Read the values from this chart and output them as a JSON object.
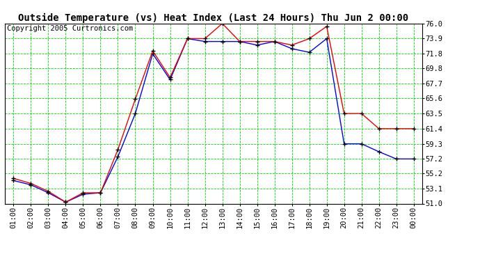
{
  "title": "Outside Temperature (vs) Heat Index (Last 24 Hours) Thu Jun 2 00:00",
  "copyright": "Copyright 2005 Curtronics.com",
  "x_labels": [
    "01:00",
    "02:00",
    "03:00",
    "04:00",
    "05:00",
    "06:00",
    "07:00",
    "08:00",
    "09:00",
    "10:00",
    "11:00",
    "12:00",
    "13:00",
    "14:00",
    "15:00",
    "16:00",
    "17:00",
    "18:00",
    "19:00",
    "20:00",
    "21:00",
    "22:00",
    "23:00",
    "00:00"
  ],
  "temp_blue": [
    54.2,
    53.6,
    52.5,
    51.2,
    52.3,
    52.5,
    57.5,
    63.5,
    71.8,
    68.2,
    73.9,
    73.5,
    73.5,
    73.5,
    73.0,
    73.5,
    72.5,
    72.0,
    73.9,
    59.3,
    59.3,
    58.2,
    57.2,
    57.2
  ],
  "temp_red": [
    54.5,
    53.8,
    52.7,
    51.2,
    52.5,
    52.5,
    58.5,
    65.5,
    72.2,
    68.5,
    73.9,
    73.9,
    76.0,
    73.5,
    73.5,
    73.5,
    73.0,
    73.9,
    75.6,
    63.5,
    63.5,
    61.4,
    61.4,
    61.4
  ],
  "ylim_min": 51.0,
  "ylim_max": 76.0,
  "yticks": [
    51.0,
    53.1,
    55.2,
    57.2,
    59.3,
    61.4,
    63.5,
    65.6,
    67.7,
    69.8,
    71.8,
    73.9,
    76.0
  ],
  "bg_color": "#ffffff",
  "grid_color": "#00dd00",
  "line_color_blue": "#0000ee",
  "line_color_red": "#ee0000",
  "marker_color": "#000000",
  "title_fontsize": 10,
  "copyright_fontsize": 7.5,
  "tick_fontsize": 7.5
}
